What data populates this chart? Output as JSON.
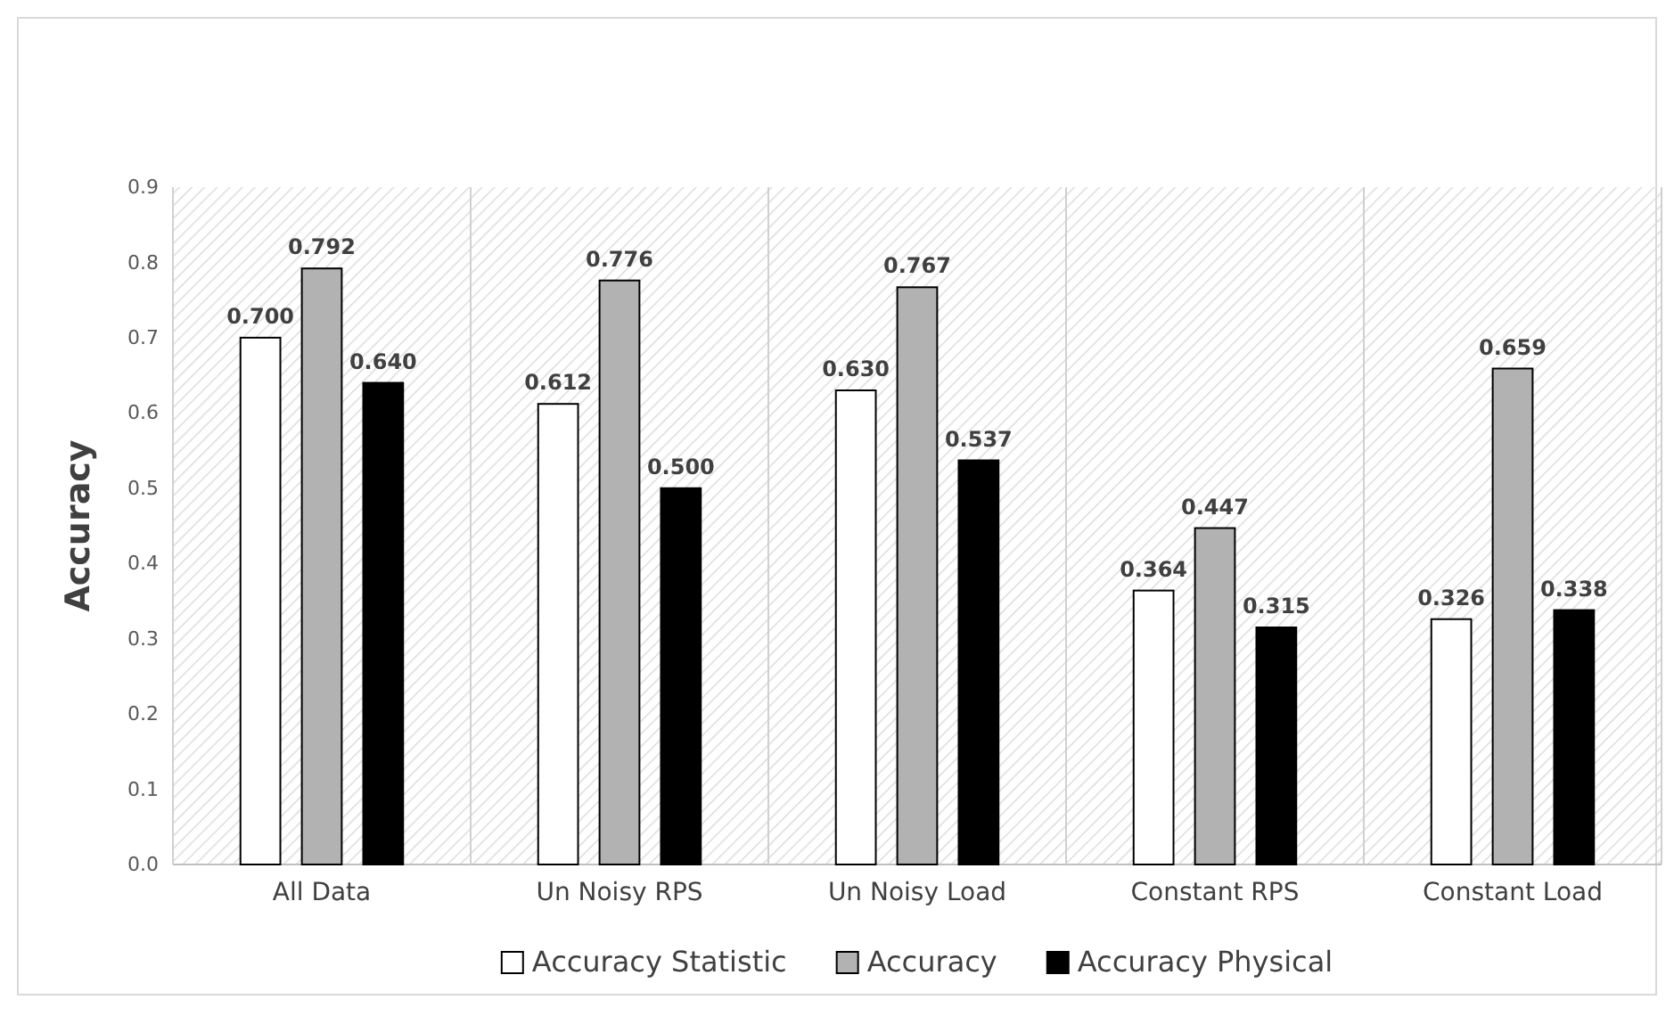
{
  "chart_data": {
    "type": "bar",
    "ylabel": "Accuracy",
    "categories": [
      "All Data",
      "Un Noisy RPS",
      "Un Noisy Load",
      "Constant RPS",
      "Constant Load"
    ],
    "series": [
      {
        "name": "Accuracy Statistic",
        "color": "#ffffff",
        "values": [
          0.7,
          0.612,
          0.63,
          0.364,
          0.326
        ]
      },
      {
        "name": "Accuracy",
        "color": "#b2b2b2",
        "values": [
          0.792,
          0.776,
          0.767,
          0.447,
          0.659
        ]
      },
      {
        "name": "Accuracy Physical",
        "color": "#000000",
        "values": [
          0.64,
          0.5,
          0.537,
          0.315,
          0.338
        ]
      }
    ],
    "ylim": [
      0,
      0.9
    ],
    "yticks": [
      {
        "value": 0,
        "label": "0.0"
      },
      0.1,
      0.2,
      0.3,
      0.4,
      0.5,
      0.6,
      0.7,
      0.8,
      0.9
    ],
    "value_labels": [
      [
        "0.700",
        "0.612",
        "0.630",
        "0.364",
        "0.326"
      ],
      [
        "0.792",
        "0.776",
        "0.767",
        "0.447",
        "0.659"
      ],
      [
        "0.640",
        "0.500",
        "0.537",
        "0.315",
        "0.338"
      ]
    ],
    "legend": "bottom"
  }
}
